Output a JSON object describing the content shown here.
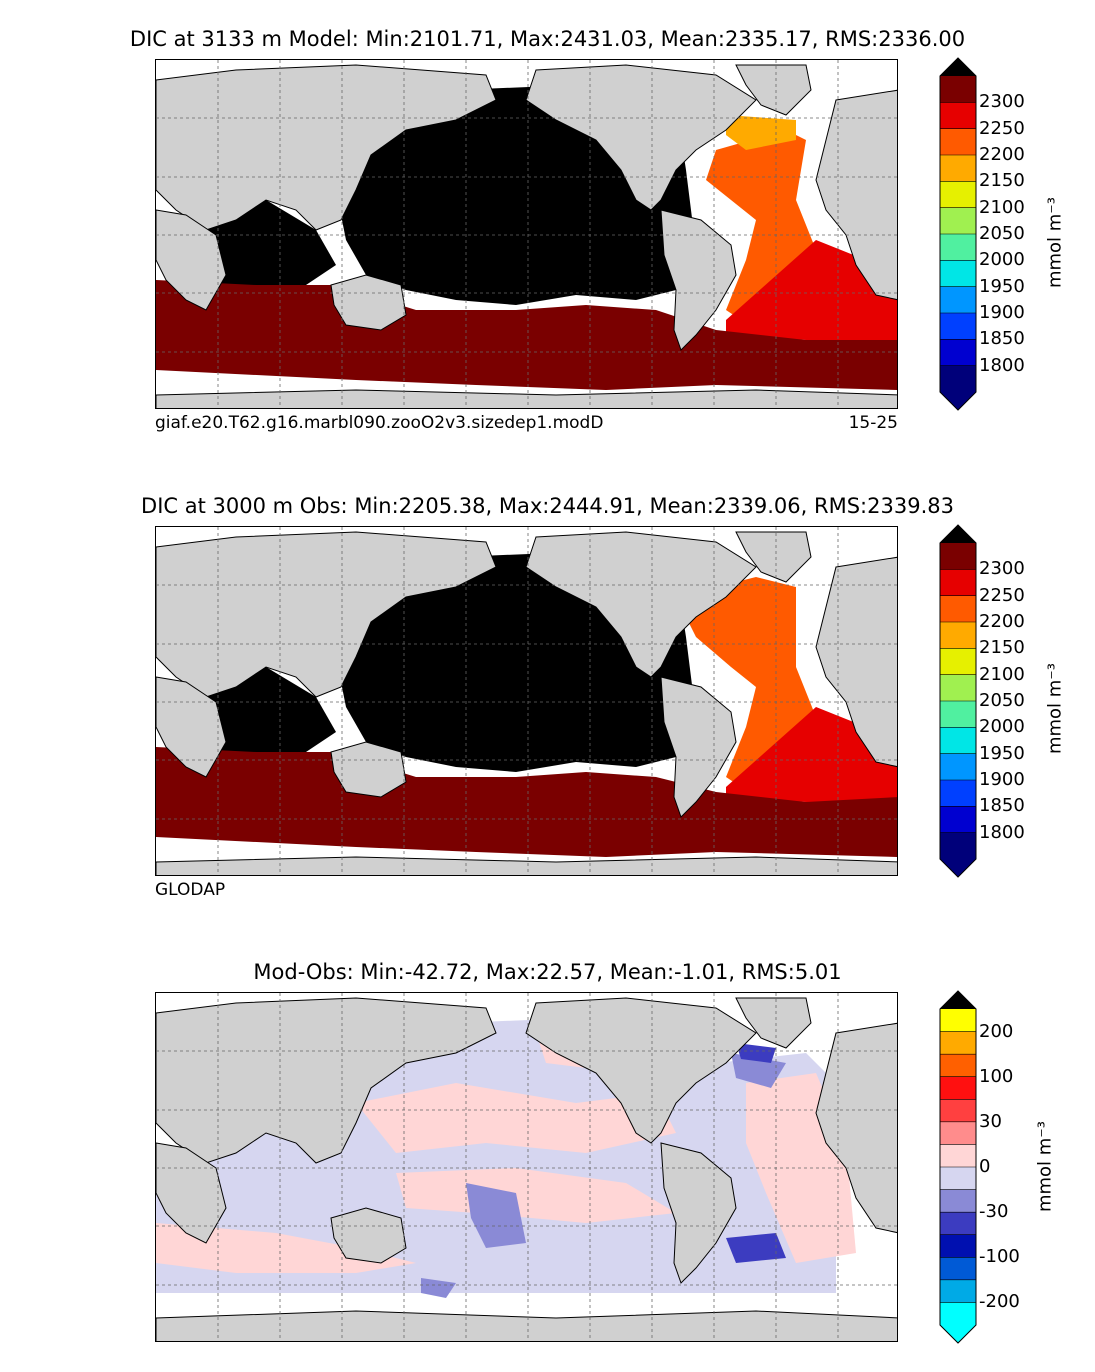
{
  "panels": [
    {
      "title": "DIC at 3133 m Model: Min:2101.71, Max:2431.03, Mean:2335.17, RMS:2336.00",
      "caption_left": "giaf.e20.T62.g16.marbl090.zooO2v3.sizedep1.modD",
      "caption_right": "15-25"
    },
    {
      "title": "DIC at 3000 m Obs: Min:2205.38, Max:2444.91, Mean:2339.06, RMS:2339.83",
      "caption_left": "GLODAP",
      "caption_right": ""
    },
    {
      "title": "Mod-Obs: Min:-42.72, Max:22.57, Mean:-1.01, RMS:5.01",
      "caption_left": "",
      "caption_right": ""
    }
  ],
  "colorbar_dic": {
    "unit": "mmol m⁻³",
    "ticks": [
      "2300",
      "2250",
      "2200",
      "2150",
      "2100",
      "2050",
      "2000",
      "1950",
      "1900",
      "1850",
      "1800"
    ],
    "colors": [
      "#7a0000",
      "#e60000",
      "#ff5a00",
      "#ffaa00",
      "#e6f000",
      "#a0f050",
      "#50f0a0",
      "#00e6e6",
      "#0096ff",
      "#0040ff",
      "#0000d0",
      "#00007a"
    ],
    "under_color": "#00007a",
    "over_color": "#000000"
  },
  "colorbar_diff": {
    "unit": "mmol m⁻³",
    "ticks": [
      "200",
      "100",
      "30",
      "0",
      "-30",
      "-100",
      "-200"
    ],
    "colors": [
      "#ffff00",
      "#ffaa00",
      "#ff6000",
      "#ff1010",
      "#ff4040",
      "#ff8c8c",
      "#ffd6d6",
      "#d6d6f0",
      "#8a8ad6",
      "#3c3cc0",
      "#0010b0",
      "#005ad6",
      "#00aae6",
      "#00ffff"
    ],
    "under_color": "#00ffff",
    "over_color": "#000000"
  },
  "map_colors": {
    "land": "#d0d0d0",
    "pacific_dic": "#000000",
    "southern_dic": "#7a0000",
    "atlantic_dic": "#ff5a00",
    "south_atlantic_dic": "#e60000",
    "north_atlantic_dic": "#ffaa00",
    "diff_negative": "#d6d6f0",
    "diff_positive": "#ffd6d6",
    "diff_strong_negative": "#8a8ad6",
    "diff_very_negative": "#3c3cc0"
  }
}
